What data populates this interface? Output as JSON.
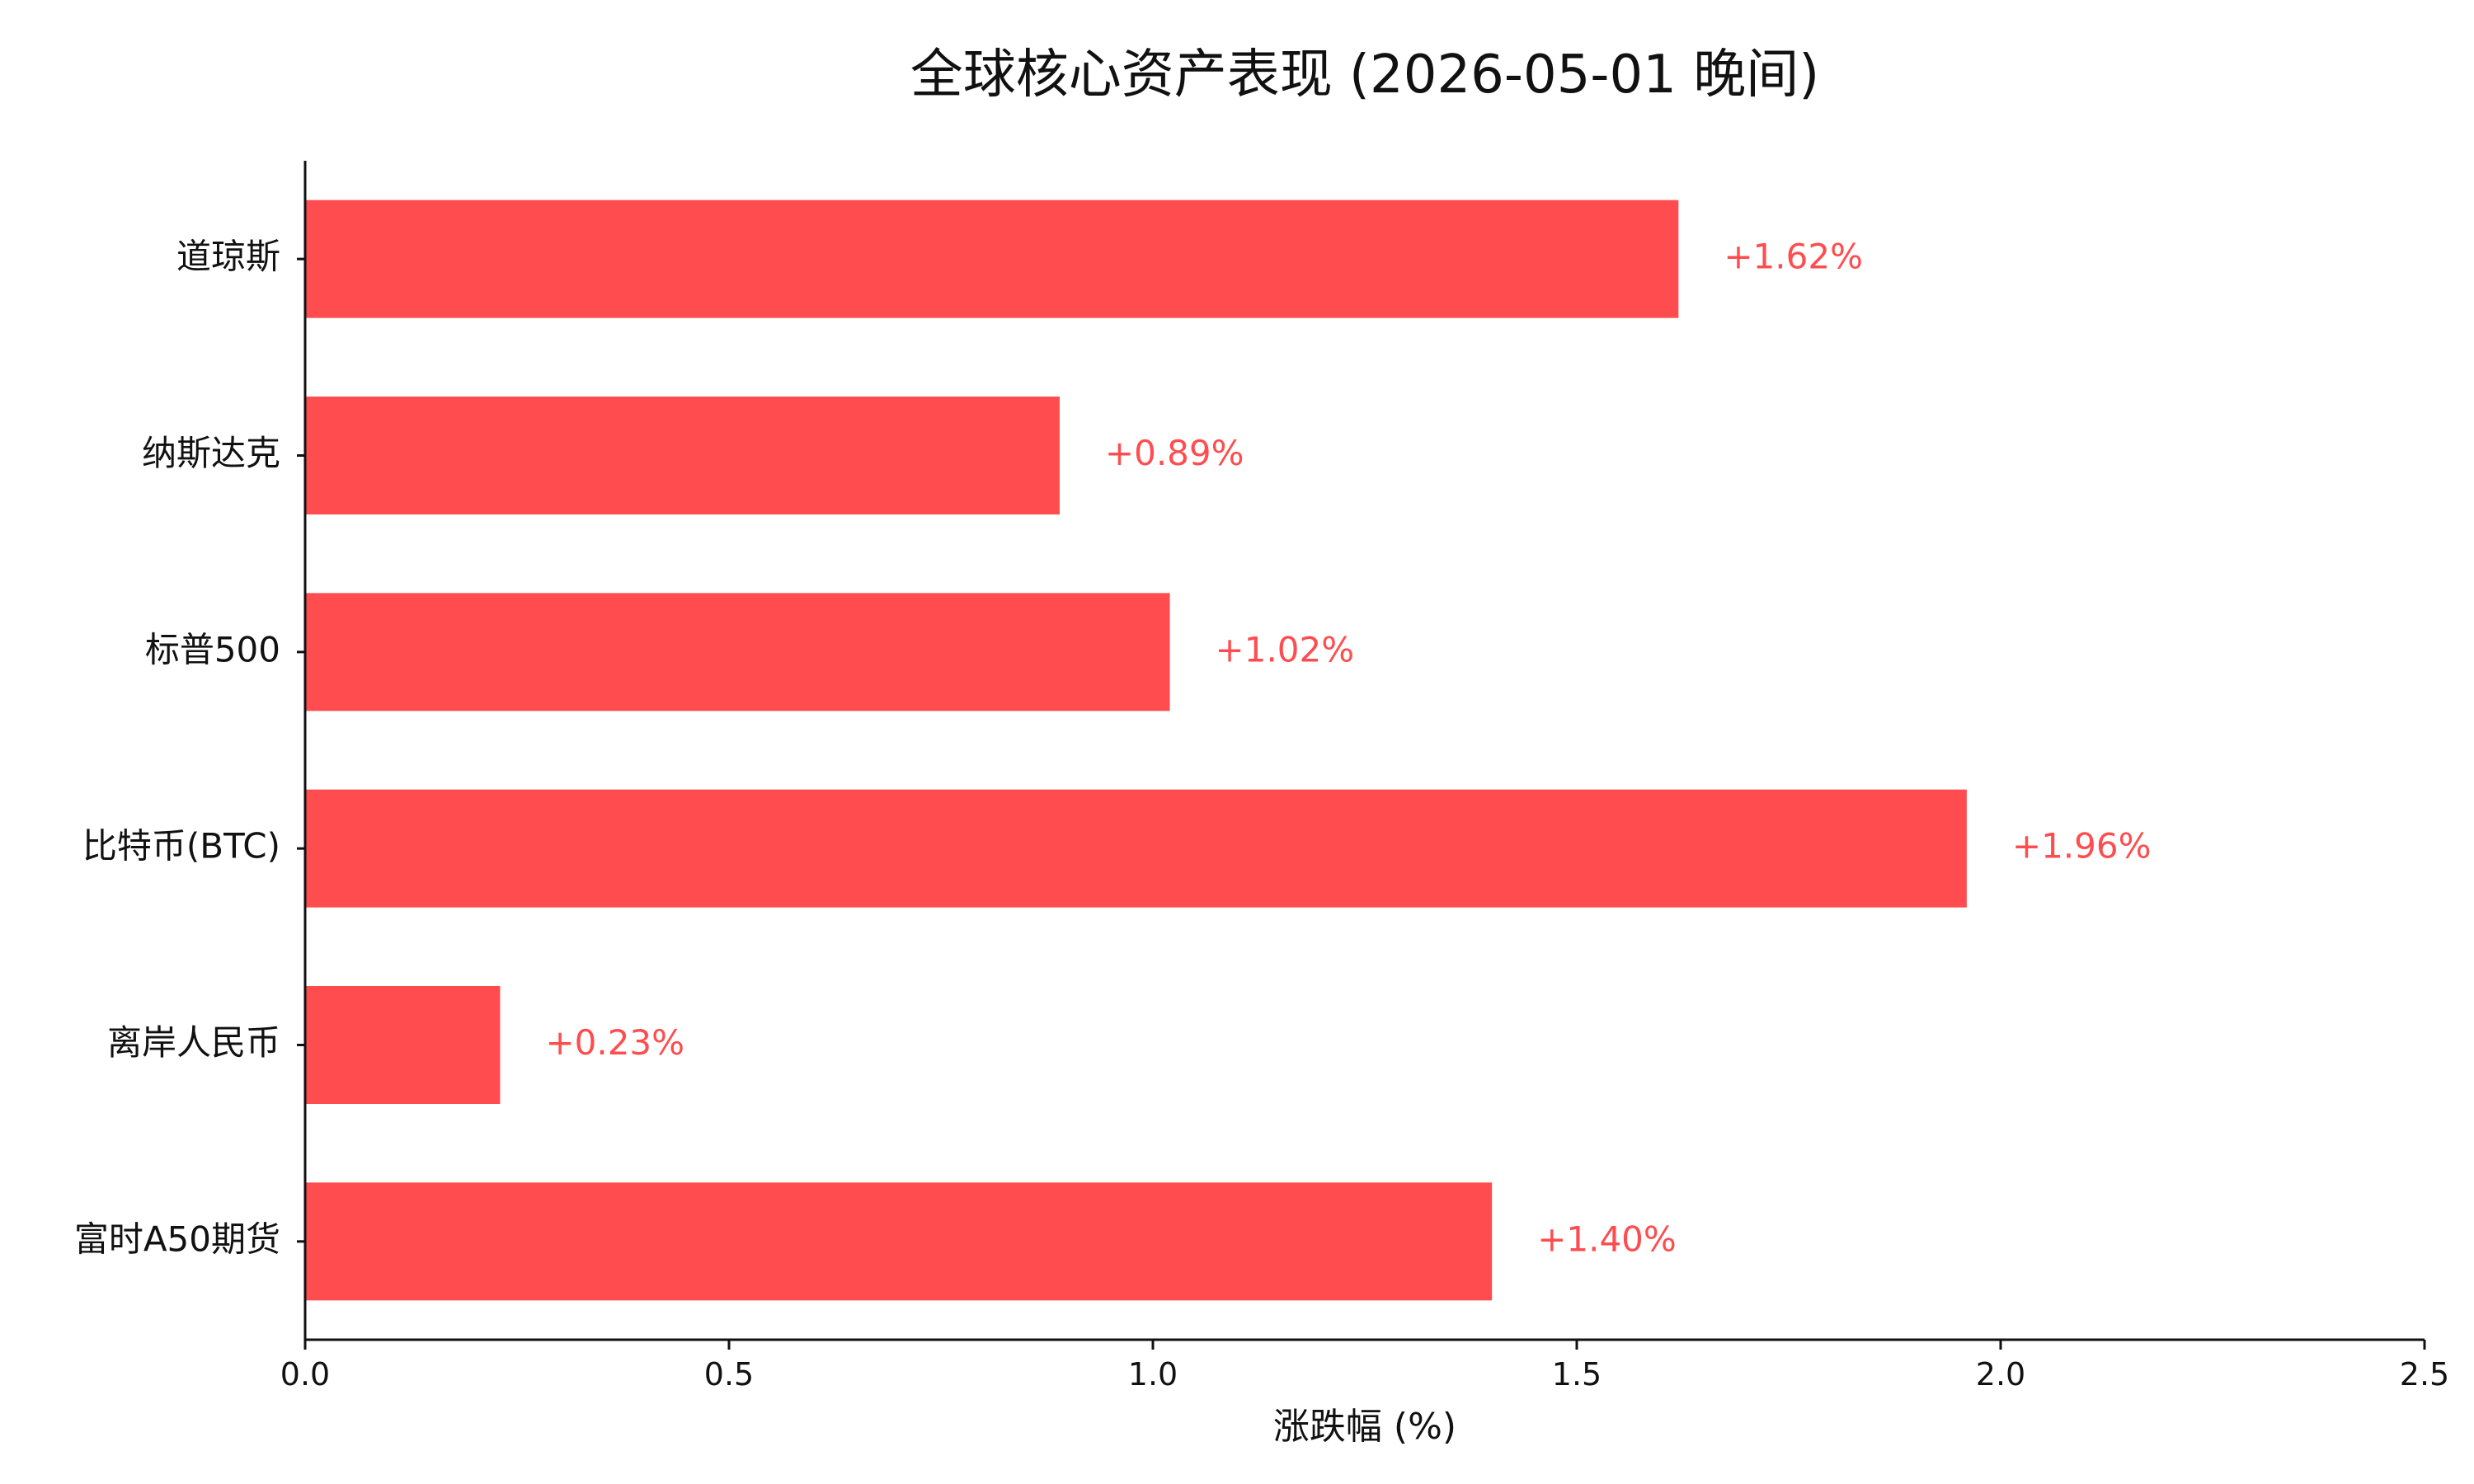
{
  "chart_data": {
    "type": "bar",
    "orientation": "horizontal",
    "title": "全球核心资产表现 (2026-05-01 晚间)",
    "xlabel": "涨跌幅 (%)",
    "ylabel": "",
    "categories": [
      "道琼斯",
      "纳斯达克",
      "标普500",
      "比特币(BTC)",
      "离岸人民币",
      "富时A50期货"
    ],
    "values": [
      1.62,
      0.89,
      1.02,
      1.96,
      0.23,
      1.4
    ],
    "value_labels": [
      "+1.62%",
      "+0.89%",
      "+1.02%",
      "+1.96%",
      "+0.23%",
      "+1.40%"
    ],
    "xlim": [
      0.0,
      2.5
    ],
    "xticks": [
      0.0,
      0.5,
      1.0,
      1.5,
      2.0,
      2.5
    ],
    "xtick_labels": [
      "0.0",
      "0.5",
      "1.0",
      "1.5",
      "2.0",
      "2.5"
    ],
    "grid": false,
    "legend": "none",
    "colors": {
      "bar": "#ff4d4f",
      "value_label": "#ff4d4f",
      "axis": "#111111",
      "text": "#111111"
    }
  }
}
